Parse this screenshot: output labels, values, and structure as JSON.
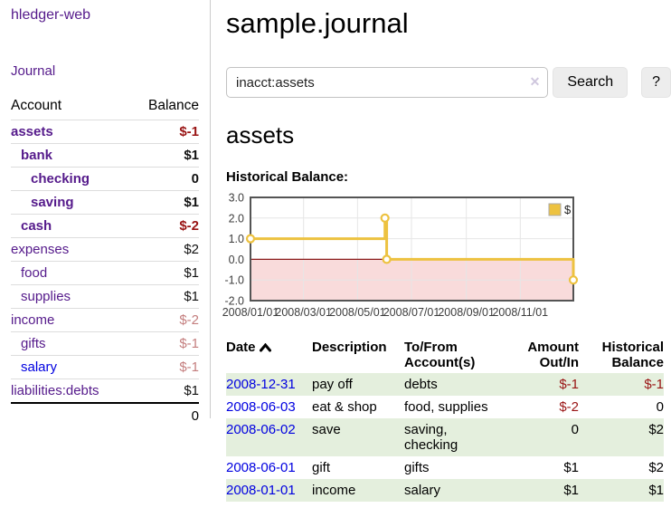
{
  "colors": {
    "link_purple": "#551a8b",
    "link_blue": "#0000e0",
    "negative_strong": "#991414",
    "negative_soft": "#c47e7e",
    "row_stripe_green": "#e4efdd",
    "series_gold": "#edc240",
    "negative_region_pink": "#f9dbdb",
    "zero_line_red": "#8b1c1c"
  },
  "sidebar": {
    "brand": "hledger-web",
    "journal_link": "Journal",
    "accounts_table": {
      "headers": {
        "account": "Account",
        "balance": "Balance"
      },
      "rows": [
        {
          "name": "assets",
          "balance": "$-1",
          "indent": 0,
          "bold": true,
          "balance_color": "negative-strong"
        },
        {
          "name": "bank",
          "balance": "$1",
          "indent": 1,
          "bold": true,
          "balance_color": ""
        },
        {
          "name": "checking",
          "balance": "0",
          "indent": 2,
          "bold": true,
          "balance_color": ""
        },
        {
          "name": "saving",
          "balance": "$1",
          "indent": 2,
          "bold": true,
          "balance_color": ""
        },
        {
          "name": "cash",
          "balance": "$-2",
          "indent": 1,
          "bold": true,
          "balance_color": "negative-strong"
        },
        {
          "name": "expenses",
          "balance": "$2",
          "indent": 0,
          "bold": false,
          "balance_color": ""
        },
        {
          "name": "food",
          "balance": "$1",
          "indent": 1,
          "bold": false,
          "balance_color": ""
        },
        {
          "name": "supplies",
          "balance": "$1",
          "indent": 1,
          "bold": false,
          "balance_color": ""
        },
        {
          "name": "income",
          "balance": "$-2",
          "indent": 0,
          "bold": false,
          "balance_color": "negative-soft"
        },
        {
          "name": "gifts",
          "balance": "$-1",
          "indent": 1,
          "bold": false,
          "balance_color": "negative-soft"
        },
        {
          "name": "salary",
          "balance": "$-1",
          "indent": 1,
          "bold": false,
          "balance_color": "negative-soft",
          "link_color": "blue"
        },
        {
          "name": "liabilities:debts",
          "balance": "$1",
          "indent": 0,
          "bold": false,
          "balance_color": ""
        }
      ],
      "total": "0"
    }
  },
  "header": {
    "title": "sample.journal"
  },
  "search": {
    "query": "inacct:assets",
    "clear_icon": "✕",
    "search_button": "Search",
    "help_button": "?"
  },
  "account_page": {
    "heading": "assets",
    "chart_label": "Historical Balance:"
  },
  "chart_data": {
    "type": "line",
    "title": "Historical Balance",
    "step": true,
    "xlim": [
      "2008-01-01",
      "2008-12-31"
    ],
    "ylim": [
      -2,
      3
    ],
    "grid": true,
    "legend_position": "top-right",
    "series": [
      {
        "name": "$",
        "color": "#edc240",
        "points": [
          [
            "2008-01-01",
            1
          ],
          [
            "2008-06-01",
            2
          ],
          [
            "2008-06-02",
            2
          ],
          [
            "2008-06-03",
            0
          ],
          [
            "2008-12-31",
            -1
          ]
        ],
        "markers": [
          [
            "2008-01-01",
            1
          ],
          [
            "2008-06-01",
            2
          ],
          [
            "2008-06-03",
            0
          ],
          [
            "2008-12-31",
            -1
          ]
        ]
      }
    ],
    "xticks": [
      {
        "value": "2008-01-01",
        "label": "2008/01/01"
      },
      {
        "value": "2008-03-01",
        "label": "2008/03/01"
      },
      {
        "value": "2008-05-01",
        "label": "2008/05/01"
      },
      {
        "value": "2008-07-01",
        "label": "2008/07/01"
      },
      {
        "value": "2008-09-01",
        "label": "2008/09/01"
      },
      {
        "value": "2008-11-01",
        "label": "2008/11/01"
      }
    ],
    "yticks": [
      {
        "value": 3,
        "label": "3.0"
      },
      {
        "value": 2,
        "label": "2.0"
      },
      {
        "value": 1,
        "label": "1.0"
      },
      {
        "value": 0,
        "label": "0.0"
      },
      {
        "value": -1,
        "label": "-1.0"
      },
      {
        "value": -2,
        "label": "-2.0"
      }
    ],
    "negative_region_color": "#f9dbdb",
    "zero_line_color": "#8b1c1c"
  },
  "register_table": {
    "headers": {
      "date": "Date",
      "description": "Description",
      "account": "To/From Account(s)",
      "amount": "Amount Out/In",
      "balance": "Historical Balance"
    },
    "rows": [
      {
        "date": "2008-12-31",
        "description": "pay off",
        "account": "debts",
        "amount": "$-1",
        "balance": "$-1",
        "amount_negative": true,
        "balance_negative": true
      },
      {
        "date": "2008-06-03",
        "description": "eat & shop",
        "account": "food, supplies",
        "amount": "$-2",
        "balance": "0",
        "amount_negative": true,
        "balance_negative": false
      },
      {
        "date": "2008-06-02",
        "description": "save",
        "account": "saving,\nchecking",
        "amount": "0",
        "balance": "$2",
        "amount_negative": false,
        "balance_negative": false
      },
      {
        "date": "2008-06-01",
        "description": "gift",
        "account": "gifts",
        "amount": "$1",
        "balance": "$2",
        "amount_negative": false,
        "balance_negative": false
      },
      {
        "date": "2008-01-01",
        "description": "income",
        "account": "salary",
        "amount": "$1",
        "balance": "$1",
        "amount_negative": false,
        "balance_negative": false
      }
    ]
  }
}
